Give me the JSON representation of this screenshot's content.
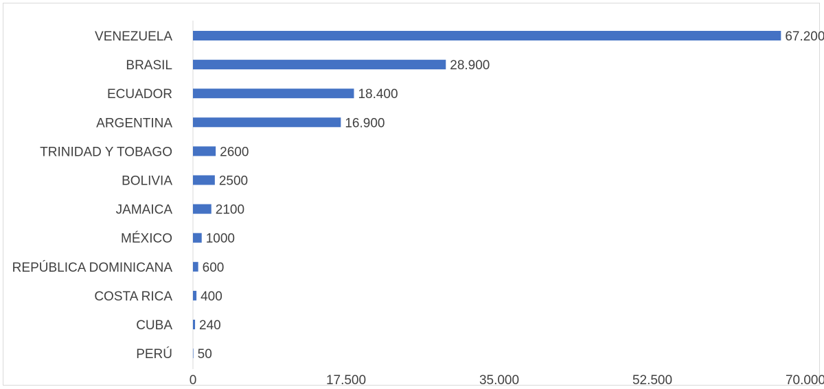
{
  "chart_data": {
    "type": "bar",
    "orientation": "horizontal",
    "categories": [
      "VENEZUELA",
      "BRASIL",
      "ECUADOR",
      "ARGENTINA",
      "TRINIDAD Y TOBAGO",
      "BOLIVIA",
      "JAMAICA",
      "MÉXICO",
      "REPÚBLICA DOMINICANA",
      "COSTA RICA",
      "CUBA",
      "PERÚ"
    ],
    "values": [
      67200,
      28900,
      18400,
      16900,
      2600,
      2500,
      2100,
      1000,
      600,
      400,
      240,
      50
    ],
    "data_labels": [
      "67.200",
      "28.900",
      "18.400",
      "16.900",
      "2600",
      "2500",
      "2100",
      "1000",
      "600",
      "400",
      "240",
      "50"
    ],
    "x_ticks": [
      0,
      17500,
      35000,
      52500,
      70000
    ],
    "x_tick_labels": [
      "0",
      "17.500",
      "35.000",
      "52.500",
      "70.000"
    ],
    "xlim": [
      0,
      70000
    ],
    "grid": false,
    "bar_color": "#4472c4"
  }
}
